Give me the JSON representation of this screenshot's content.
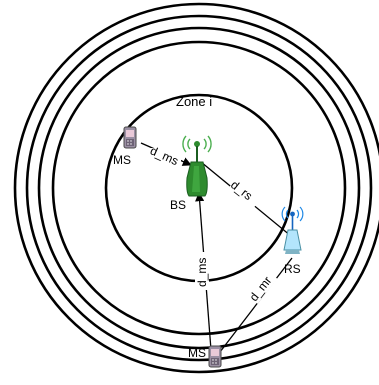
{
  "diagram": {
    "zone_label": "Zone i",
    "nodes": {
      "bs": {
        "label": "BS",
        "icon": "base-station-icon",
        "color": "#2e8b2e"
      },
      "rs": {
        "label": "RS",
        "icon": "relay-station-icon",
        "color": "#7ec8e3"
      },
      "ms_top": {
        "label": "MS",
        "icon": "mobile-phone-icon"
      },
      "ms_bottom": {
        "label": "MS",
        "icon": "mobile-phone-icon"
      }
    },
    "links": {
      "d_ms_top": "d_ms",
      "d_ms_bottom": "d_ms",
      "d_rs": "d_rs",
      "d_mr": "d_mr"
    },
    "ring_count": 5
  }
}
